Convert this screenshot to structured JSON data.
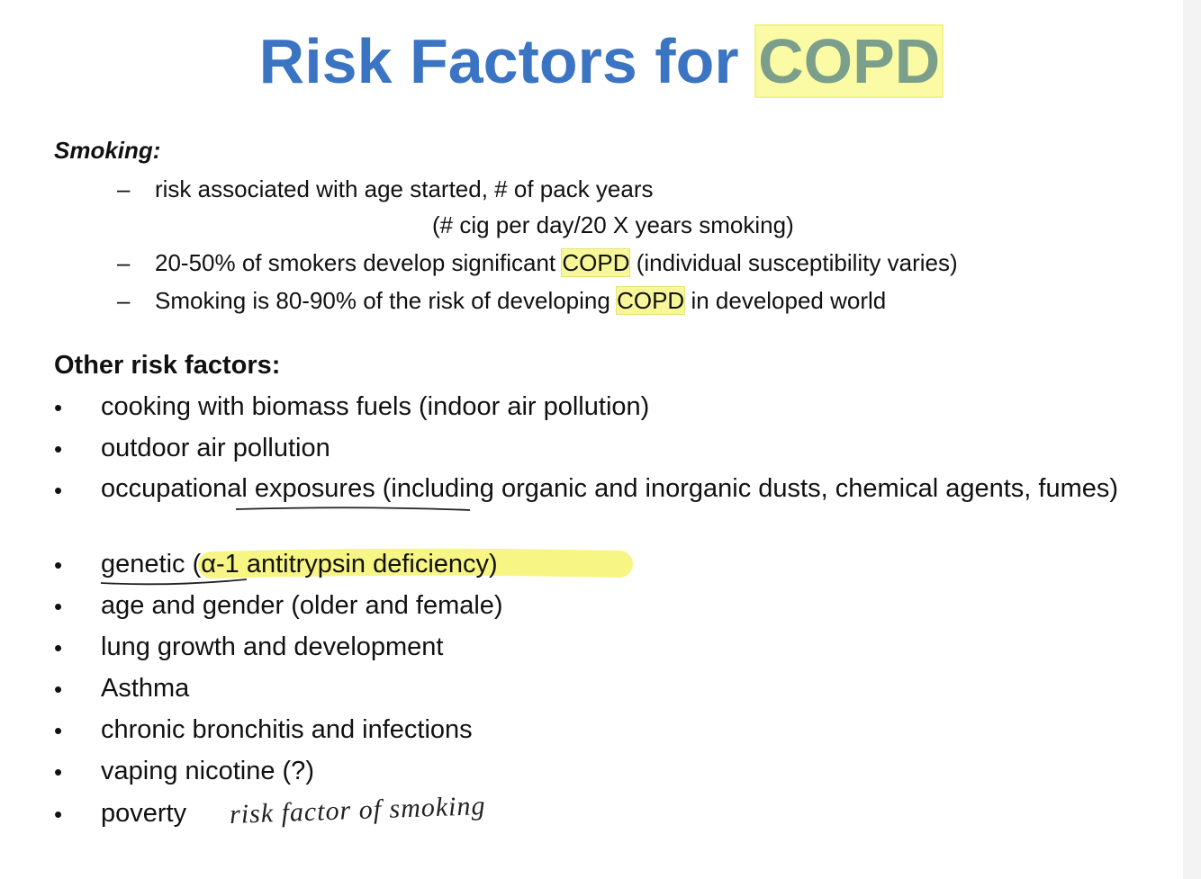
{
  "title": {
    "text": "Risk Factors for",
    "highlight": "COPD"
  },
  "smoking": {
    "heading": "Smoking:",
    "items": [
      {
        "parts": [
          "risk associated with age started, # of pack years"
        ],
        "subline": "(# cig per day/20 X years smoking)"
      },
      {
        "parts": [
          "20-50% of smokers develop significant",
          "COPD",
          "(individual susceptibility varies)"
        ]
      },
      {
        "parts": [
          "Smoking is 80-90% of the risk of developing",
          "COPD",
          "in developed world"
        ]
      }
    ]
  },
  "other": {
    "heading": "Other risk factors:",
    "items": [
      "cooking with biomass fuels (indoor air pollution)",
      "outdoor air pollution",
      "occupational exposures (including organic and inorganic dusts, chemical agents, fumes)",
      "genetic (α-1 antitrypsin deficiency)",
      "age and gender (older and female)",
      "lung growth and development",
      "Asthma",
      "chronic bronchitis and infections",
      "vaping nicotine (?)",
      "poverty"
    ],
    "annotation": "risk factor of smoking"
  }
}
